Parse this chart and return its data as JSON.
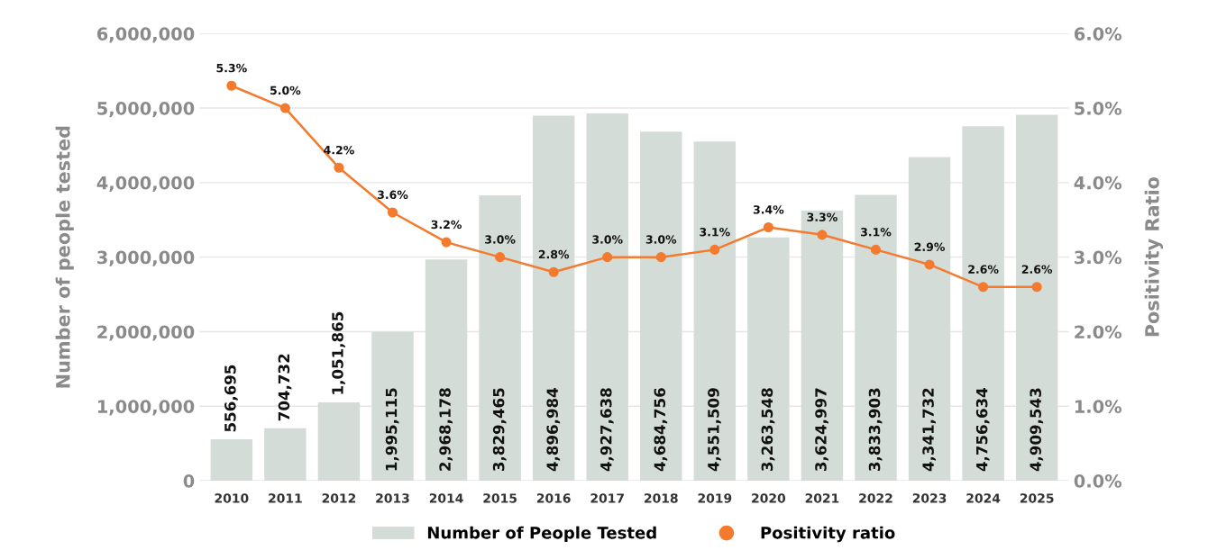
{
  "chart_data": {
    "type": "bar",
    "xlabel": null,
    "ylabel": "Number of people tested",
    "y2label": "Positivity Ratio",
    "categories": [
      "2010",
      "2011",
      "2012",
      "2013",
      "2014",
      "2015",
      "2016",
      "2017",
      "2018",
      "2019",
      "2020",
      "2021",
      "2022",
      "2023",
      "2024",
      "2025"
    ],
    "series": [
      {
        "name": "Number of People Tested",
        "color": "#d4dcd7",
        "values": [
          556695,
          704732,
          1051865,
          1995115,
          2968178,
          3829465,
          4896984,
          4927638,
          4684756,
          4551509,
          3263548,
          3624997,
          3833903,
          4341732,
          4756634,
          4909543
        ],
        "value_labels": [
          "556,695",
          "704,732",
          "1,051,865",
          "1,995,115",
          "2,968,178",
          "3,829,465",
          "4,896,984",
          "4,927,638",
          "4,684,756",
          "4,551,509",
          "3,263,548",
          "3,624,997",
          "3,833,903",
          "4,341,732",
          "4,756,634",
          "4,909,543"
        ]
      },
      {
        "name": "Positivity ratio",
        "type": "line",
        "axis": "y2",
        "color": "#f47a2e",
        "marker": "circle",
        "values": [
          5.3,
          5.0,
          4.2,
          3.6,
          3.2,
          3.0,
          2.8,
          3.0,
          3.0,
          3.1,
          3.4,
          3.3,
          3.1,
          2.9,
          2.6,
          2.6
        ],
        "value_labels": [
          "5.3%",
          "5.0%",
          "4.2%",
          "3.6%",
          "3.2%",
          "3.0%",
          "2.8%",
          "3.0%",
          "3.0%",
          "3.1%",
          "3.4%",
          "3.3%",
          "3.1%",
          "2.9%",
          "2.6%",
          "2.6%"
        ]
      }
    ],
    "ylim": [
      0,
      6000000
    ],
    "yticks": [
      {
        "value": 0,
        "label": "0"
      },
      {
        "value": 1000000,
        "label": "1,000,000"
      },
      {
        "value": 2000000,
        "label": "2,000,000"
      },
      {
        "value": 3000000,
        "label": "3,000,000"
      },
      {
        "value": 4000000,
        "label": "4,000,000"
      },
      {
        "value": 5000000,
        "label": "5,000,000"
      },
      {
        "value": 6000000,
        "label": "6,000,000"
      }
    ],
    "y2lim": [
      0,
      6
    ],
    "y2ticks": [
      {
        "value": 0,
        "label": "0.0%"
      },
      {
        "value": 1,
        "label": "1.0%"
      },
      {
        "value": 2,
        "label": "2.0%"
      },
      {
        "value": 3,
        "label": "3.0%"
      },
      {
        "value": 4,
        "label": "4.0%"
      },
      {
        "value": 5,
        "label": "5.0%"
      },
      {
        "value": 6,
        "label": "6.0%"
      }
    ],
    "grid": "y",
    "legend": "bottom"
  }
}
